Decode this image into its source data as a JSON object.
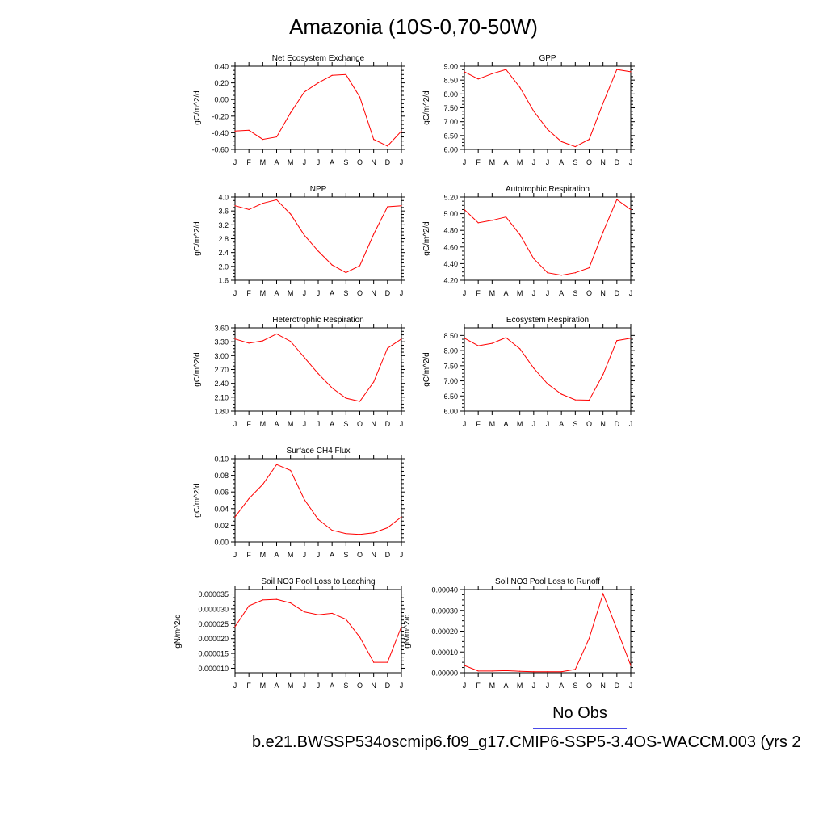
{
  "title": "Amazonia (10S-0,70-50W)",
  "legend": {
    "obs_label": "No Obs",
    "case_label": "b.e21.BWSSP534oscmip6.f09_g17.CMIP6-SSP5-3.4OS-WACCM.003 (yrs 2",
    "obs_color": "#4a4ae8",
    "case_color": "#e84a4a"
  },
  "chart_data": [
    {
      "type": "line",
      "title": "Net Ecosystem Exchange",
      "ylabel": "gC/m^2/d",
      "x": [
        "J",
        "F",
        "M",
        "A",
        "M",
        "J",
        "J",
        "A",
        "S",
        "O",
        "N",
        "D",
        "J"
      ],
      "yticks": [
        "-0.60",
        "-0.40",
        "-0.20",
        "0.00",
        "0.20",
        "0.40"
      ],
      "ylim": [
        -0.6,
        0.4
      ],
      "series": [
        {
          "values": [
            -0.38,
            -0.37,
            -0.48,
            -0.45,
            -0.16,
            0.09,
            0.2,
            0.29,
            0.3,
            0.03,
            -0.48,
            -0.56,
            -0.38
          ],
          "color": "#ff0000"
        }
      ]
    },
    {
      "type": "line",
      "title": "GPP",
      "ylabel": "gC/m^2/d",
      "x": [
        "J",
        "F",
        "M",
        "A",
        "M",
        "J",
        "J",
        "A",
        "S",
        "O",
        "N",
        "D",
        "J"
      ],
      "yticks": [
        "6.00",
        "6.50",
        "7.00",
        "7.50",
        "8.00",
        "8.50",
        "9.00"
      ],
      "ylim": [
        6.0,
        9.0
      ],
      "series": [
        {
          "values": [
            8.8,
            8.54,
            8.73,
            8.88,
            8.24,
            7.38,
            6.72,
            6.28,
            6.1,
            6.36,
            7.67,
            8.88,
            8.8
          ],
          "color": "#ff0000"
        }
      ]
    },
    {
      "type": "line",
      "title": "NPP",
      "ylabel": "gC/m^2/d",
      "x": [
        "J",
        "F",
        "M",
        "A",
        "M",
        "J",
        "J",
        "A",
        "S",
        "O",
        "N",
        "D",
        "J"
      ],
      "yticks": [
        "1.6",
        "2.0",
        "2.4",
        "2.8",
        "3.2",
        "3.6",
        "4.0"
      ],
      "ylim": [
        1.6,
        4.0
      ],
      "series": [
        {
          "values": [
            3.75,
            3.64,
            3.82,
            3.92,
            3.51,
            2.9,
            2.44,
            2.04,
            1.82,
            2.02,
            2.93,
            3.72,
            3.75
          ],
          "color": "#ff0000"
        }
      ]
    },
    {
      "type": "line",
      "title": "Autotrophic Respiration",
      "ylabel": "gC/m^2/d",
      "x": [
        "J",
        "F",
        "M",
        "A",
        "M",
        "J",
        "J",
        "A",
        "S",
        "O",
        "N",
        "D",
        "J"
      ],
      "yticks": [
        "4.20",
        "4.40",
        "4.60",
        "4.80",
        "5.00",
        "5.20"
      ],
      "ylim": [
        4.2,
        5.2
      ],
      "series": [
        {
          "values": [
            5.05,
            4.89,
            4.92,
            4.96,
            4.75,
            4.46,
            4.29,
            4.26,
            4.29,
            4.35,
            4.78,
            5.17,
            5.05
          ],
          "color": "#ff0000"
        }
      ]
    },
    {
      "type": "line",
      "title": "Heterotrophic Respiration",
      "ylabel": "gC/m^2/d",
      "x": [
        "J",
        "F",
        "M",
        "A",
        "M",
        "J",
        "J",
        "A",
        "S",
        "O",
        "N",
        "D",
        "J"
      ],
      "yticks": [
        "1.80",
        "2.10",
        "2.40",
        "2.70",
        "3.00",
        "3.30",
        "3.60"
      ],
      "ylim": [
        1.8,
        3.6
      ],
      "series": [
        {
          "values": [
            3.36,
            3.27,
            3.32,
            3.47,
            3.31,
            2.96,
            2.61,
            2.3,
            2.08,
            2.01,
            2.43,
            3.16,
            3.36
          ],
          "color": "#ff0000"
        }
      ]
    },
    {
      "type": "line",
      "title": "Ecosystem Respiration",
      "ylabel": "gC/m^2/d",
      "x": [
        "J",
        "F",
        "M",
        "A",
        "M",
        "J",
        "J",
        "A",
        "S",
        "O",
        "N",
        "D",
        "J"
      ],
      "yticks": [
        "6.00",
        "6.50",
        "7.00",
        "7.50",
        "8.00",
        "8.50"
      ],
      "ylim": [
        6.0,
        8.75
      ],
      "series": [
        {
          "values": [
            8.41,
            8.16,
            8.24,
            8.43,
            8.06,
            7.42,
            6.9,
            6.56,
            6.37,
            6.36,
            7.21,
            8.33,
            8.41
          ],
          "color": "#ff0000"
        }
      ]
    },
    {
      "type": "line",
      "title": "Surface CH4 Flux",
      "ylabel": "gC/m^2/d",
      "x": [
        "J",
        "F",
        "M",
        "A",
        "M",
        "J",
        "J",
        "A",
        "S",
        "O",
        "N",
        "D",
        "J"
      ],
      "yticks": [
        "0.00",
        "0.02",
        "0.04",
        "0.06",
        "0.08",
        "0.10"
      ],
      "ylim": [
        0.0,
        0.1
      ],
      "series": [
        {
          "values": [
            0.03,
            0.052,
            0.069,
            0.093,
            0.086,
            0.051,
            0.027,
            0.014,
            0.01,
            0.009,
            0.011,
            0.017,
            0.03
          ],
          "color": "#ff0000"
        }
      ]
    },
    {
      "type": "line",
      "title": "Soil NO3 Pool Loss to Leaching",
      "ylabel": "gN/m^2/d",
      "x": [
        "J",
        "F",
        "M",
        "A",
        "M",
        "J",
        "J",
        "A",
        "S",
        "O",
        "N",
        "D",
        "J"
      ],
      "yticks": [
        "0.000010",
        "0.000015",
        "0.000020",
        "0.000025",
        "0.000030",
        "0.000035"
      ],
      "ylim": [
        8.5e-06,
        3.65e-05
      ],
      "series": [
        {
          "values": [
            2.4e-05,
            3.1e-05,
            3.3e-05,
            3.32e-05,
            3.2e-05,
            2.9e-05,
            2.8e-05,
            2.85e-05,
            2.65e-05,
            2.05e-05,
            1.2e-05,
            1.2e-05,
            2.4e-05
          ],
          "color": "#ff0000"
        }
      ]
    },
    {
      "type": "line",
      "title": "Soil NO3 Pool Loss to Runoff",
      "ylabel": "gN/m^2/d",
      "x": [
        "J",
        "F",
        "M",
        "A",
        "M",
        "J",
        "J",
        "A",
        "S",
        "O",
        "N",
        "D",
        "J"
      ],
      "yticks": [
        "0.00000",
        "0.00010",
        "0.00020",
        "0.00030",
        "0.00040"
      ],
      "ylim": [
        0.0,
        0.0004
      ],
      "series": [
        {
          "values": [
            3.5e-05,
            8e-06,
            8e-06,
            1e-05,
            7e-06,
            5e-06,
            5e-06,
            5e-06,
            1.6e-05,
            0.000165,
            0.00038,
            0.00021,
            3.5e-05
          ],
          "color": "#ff0000"
        }
      ]
    }
  ]
}
